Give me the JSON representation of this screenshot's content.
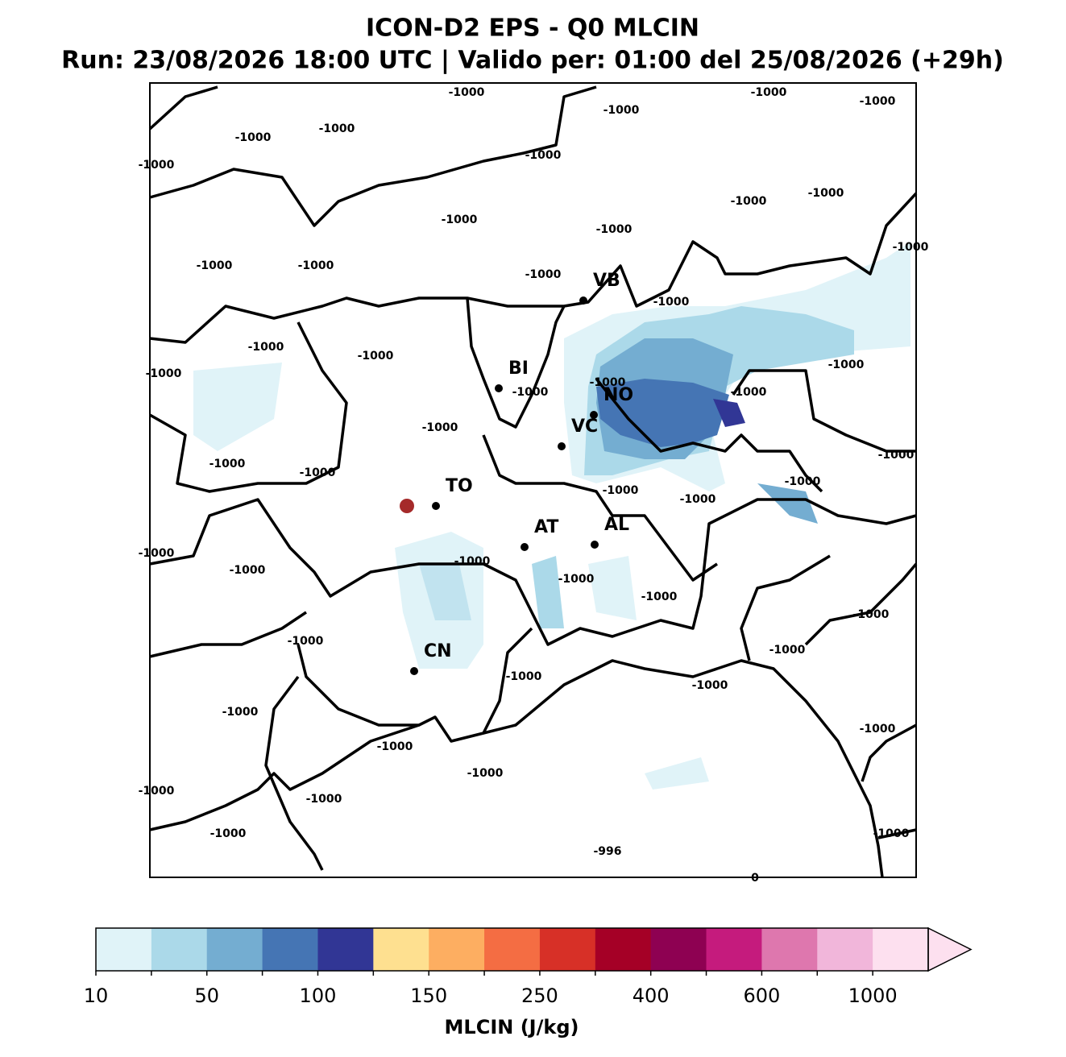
{
  "header": {
    "title": "ICON-D2 EPS - Q0 MLCIN",
    "subtitle": "Run: 23/08/2026 18:00 UTC | Valido per: 01:00 del 25/08/2026 (+29h)"
  },
  "map": {
    "cities": [
      "VB",
      "BI",
      "NO",
      "VC",
      "TO",
      "AT",
      "AL",
      "CN"
    ],
    "contour_labels": [
      -1000,
      -1000,
      -1000,
      -1000,
      -1000,
      -1000,
      -1000,
      -1000,
      -1000,
      -1000,
      -1000,
      -1000,
      -1000,
      -1000,
      -1000,
      -1000,
      -1000,
      -1000,
      -1000,
      -1000,
      -1000,
      -1000,
      -1000,
      -1000,
      -1000,
      -1000,
      -1000,
      -1000,
      -1000,
      -1000,
      -1000,
      -1000,
      -1000,
      -1000,
      -1000,
      -1000,
      -1000,
      -1000,
      -1000,
      -1000,
      -1000,
      -1000,
      -1000,
      -1000,
      -1000,
      -1000,
      -1000,
      -1000,
      -1000,
      -996,
      0
    ]
  },
  "colorbar": {
    "label": "MLCIN (J/kg)",
    "colors": [
      "#e0f3f8",
      "#abd9e9",
      "#74add1",
      "#4575b4",
      "#313695",
      "#fee090",
      "#fdae61",
      "#f46d43",
      "#d73027",
      "#a50026",
      "#8e0152",
      "#c51b7d",
      "#de77ae",
      "#f1b6da",
      "#fde0ef"
    ],
    "ticks": [
      10,
      50,
      100,
      150,
      250,
      400,
      600,
      1000
    ]
  }
}
